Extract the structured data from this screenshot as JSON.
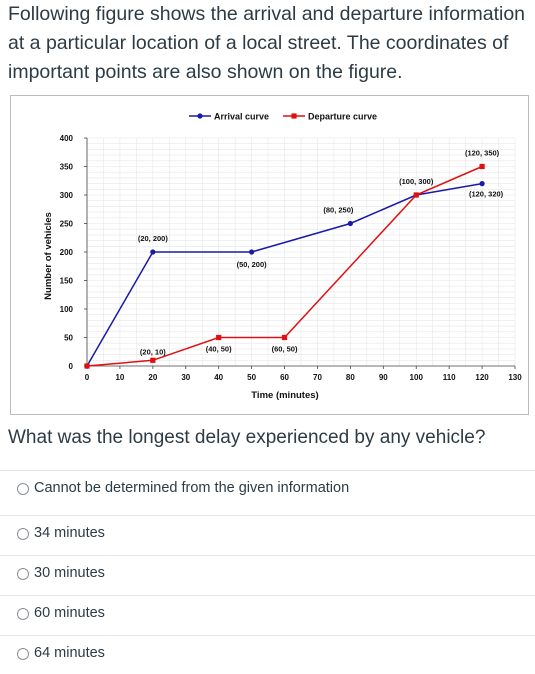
{
  "question": {
    "intro": "Following figure shows the arrival and departure information at a particular location of a local street. The coordinates of important points are also shown on the figure.",
    "prompt": "What was the longest delay experienced by any vehicle?"
  },
  "options": [
    {
      "label": "Cannot be determined from the given information"
    },
    {
      "label": "34 minutes"
    },
    {
      "label": "30 minutes"
    },
    {
      "label": "60 minutes"
    },
    {
      "label": "64 minutes"
    }
  ],
  "chart_data": {
    "type": "line",
    "xlabel": "Time (minutes)",
    "ylabel": "Number of vehicles",
    "xlim": [
      0,
      130
    ],
    "ylim": [
      0,
      400
    ],
    "xticks": [
      0,
      10,
      20,
      30,
      40,
      50,
      60,
      70,
      80,
      90,
      100,
      110,
      120,
      130
    ],
    "yticks": [
      0,
      50,
      100,
      150,
      200,
      250,
      300,
      350,
      400
    ],
    "grid": true,
    "legend_position": "top",
    "series": [
      {
        "name": "Arrival curve",
        "color": "#1a1aa8",
        "marker": "circle",
        "points": [
          [
            0,
            0
          ],
          [
            20,
            200
          ],
          [
            50,
            200
          ],
          [
            80,
            250
          ],
          [
            100,
            300
          ],
          [
            120,
            320
          ]
        ]
      },
      {
        "name": "Departure curve",
        "color": "#e01010",
        "marker": "square",
        "points": [
          [
            0,
            0
          ],
          [
            20,
            10
          ],
          [
            40,
            50
          ],
          [
            60,
            50
          ],
          [
            100,
            300
          ],
          [
            120,
            350
          ]
        ]
      }
    ],
    "annotations": [
      {
        "text": "(20, 200)",
        "x": 20,
        "y": 200
      },
      {
        "text": "(50, 200)",
        "x": 50,
        "y": 200
      },
      {
        "text": "(80, 250)",
        "x": 80,
        "y": 250
      },
      {
        "text": "(100, 300)",
        "x": 100,
        "y": 300
      },
      {
        "text": "(120, 350)",
        "x": 120,
        "y": 350
      },
      {
        "text": "(120, 320)",
        "x": 120,
        "y": 320
      },
      {
        "text": "(20, 10)",
        "x": 20,
        "y": 10
      },
      {
        "text": "(40, 50)",
        "x": 40,
        "y": 50
      },
      {
        "text": "(60, 50)",
        "x": 60,
        "y": 50
      }
    ]
  }
}
